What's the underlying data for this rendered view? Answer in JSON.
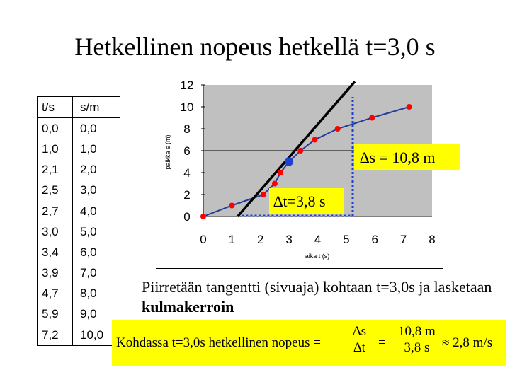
{
  "title": "Hetkellinen nopeus hetkellä t=3,0 s",
  "table": {
    "headers": [
      "t/s",
      "s/m"
    ],
    "rows": [
      [
        "0,0",
        "0,0"
      ],
      [
        "1,0",
        "1,0"
      ],
      [
        "2,1",
        "2,0"
      ],
      [
        "2,5",
        "3,0"
      ],
      [
        "2,7",
        "4,0"
      ],
      [
        "3,0",
        "5,0"
      ],
      [
        "3,4",
        "6,0"
      ],
      [
        "3,9",
        "7,0"
      ],
      [
        "4,7",
        "8,0"
      ],
      [
        "5,9",
        "9,0"
      ],
      [
        "7,2",
        "10,0"
      ]
    ]
  },
  "chart_data": {
    "type": "scatter",
    "xlabel": "aika t (s)",
    "ylabel": "paikka s (m)",
    "xlim": [
      0,
      8
    ],
    "ylim": [
      0,
      12
    ],
    "x_ticks": [
      "0",
      "1",
      "2",
      "3",
      "4",
      "5",
      "6",
      "7",
      "8"
    ],
    "y_ticks": [
      "0",
      "2",
      "4",
      "6",
      "8",
      "10",
      "12"
    ],
    "series": [
      {
        "points": [
          [
            0.0,
            0.0
          ],
          [
            1.0,
            1.0
          ],
          [
            2.1,
            2.0
          ],
          [
            2.5,
            3.0
          ],
          [
            2.7,
            4.0
          ],
          [
            3.0,
            5.0
          ],
          [
            3.4,
            6.0
          ],
          [
            3.9,
            7.0
          ],
          [
            4.7,
            8.0
          ],
          [
            5.9,
            9.0
          ],
          [
            7.2,
            10.0
          ]
        ]
      }
    ],
    "highlight_point": [
      3.0,
      5.0
    ],
    "tangent": {
      "from": [
        1.2,
        0.0
      ],
      "to": [
        5.3,
        12.3
      ]
    },
    "delta_s_label": "∆s = 10,8 m",
    "delta_t_label": "∆t=3,8 s",
    "colors": {
      "plot_bg": "#c0c0c0",
      "point": "#ff0000",
      "curve": "#1f3d99",
      "tangent": "#000000",
      "highlight": "#1e3fd0",
      "label_bg": "#ffff00"
    }
  },
  "note": {
    "text": "Piirretään tangentti (sivuaja) kohtaan t=3,0s ja lasketaan ",
    "bold": "kulmakerroin"
  },
  "formula": {
    "lead": "Kohdassa t=3,0s hetkellinen nopeus =",
    "frac1_num": "∆s",
    "frac1_den": "∆t",
    "eq": "=",
    "frac2_num": "10,8 m",
    "frac2_den": "3,8 s",
    "result": "≈ 2,8 m/s"
  }
}
